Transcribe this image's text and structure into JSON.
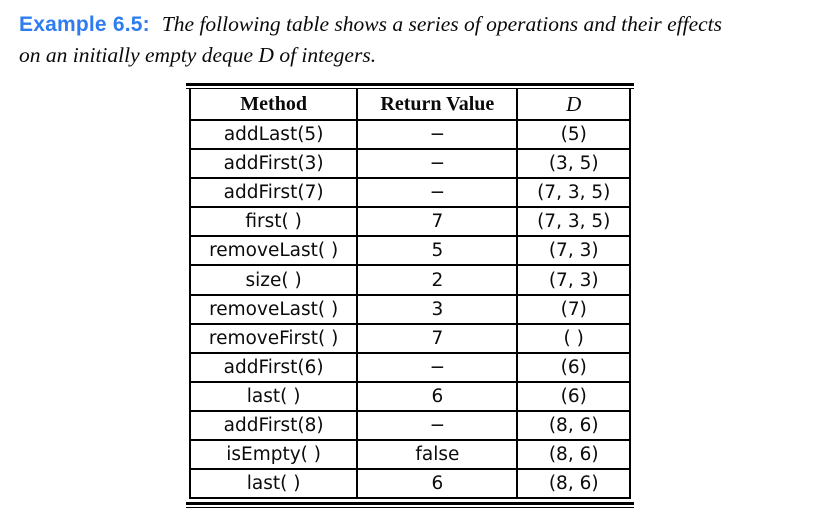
{
  "page": {
    "heading": "Example 6.5:",
    "intro_line1": "The following table shows a series of operations and their effects",
    "intro_line2": "on an initially empty deque D of integers.",
    "accent_color": "#2e7cf0"
  },
  "table": {
    "headers": {
      "method": "Method",
      "return_value": "Return Value",
      "deque": "D"
    },
    "rows": [
      {
        "method": "addLast(5)",
        "ret": "−",
        "d": "(5)"
      },
      {
        "method": "addFirst(3)",
        "ret": "−",
        "d": "(3, 5)"
      },
      {
        "method": "addFirst(7)",
        "ret": "−",
        "d": "(7, 3, 5)"
      },
      {
        "method": "first( )",
        "ret": "7",
        "d": "(7, 3, 5)"
      },
      {
        "method": "removeLast( )",
        "ret": "5",
        "d": "(7, 3)"
      },
      {
        "method": "size( )",
        "ret": "2",
        "d": "(7, 3)"
      },
      {
        "method": "removeLast( )",
        "ret": "3",
        "d": "(7)"
      },
      {
        "method": "removeFirst( )",
        "ret": "7",
        "d": "( )"
      },
      {
        "method": "addFirst(6)",
        "ret": "−",
        "d": "(6)"
      },
      {
        "method": "last( )",
        "ret": "6",
        "d": "(6)"
      },
      {
        "method": "addFirst(8)",
        "ret": "−",
        "d": "(8, 6)"
      },
      {
        "method": "isEmpty( )",
        "ret": "false",
        "d": "(8, 6)"
      },
      {
        "method": "last( )",
        "ret": "6",
        "d": "(8, 6)"
      }
    ]
  }
}
